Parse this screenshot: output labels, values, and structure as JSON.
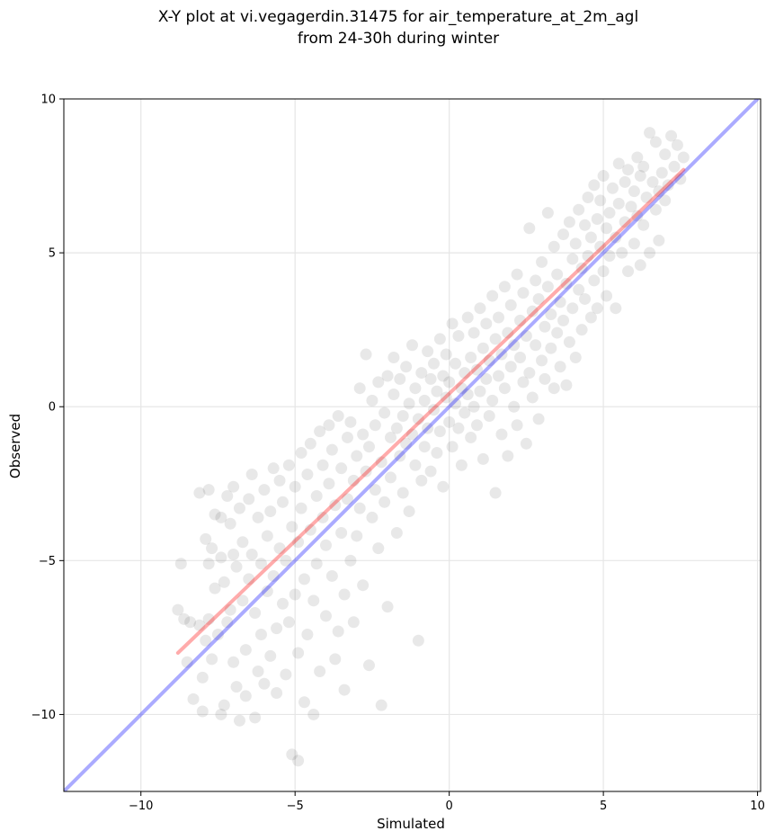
{
  "chart_data": {
    "type": "scatter",
    "title_line1": "X-Y plot at vi.vegagerdin.31475 for air_temperature_at_2m_agl",
    "title_line2": "from 24-30h during winter",
    "xlabel": "Simulated",
    "ylabel": "Observed",
    "xlim": [
      -12.5,
      10.1
    ],
    "ylim": [
      -12.5,
      10.0
    ],
    "x_ticks": [
      -10,
      -5,
      0,
      5,
      10
    ],
    "y_ticks": [
      -10,
      -5,
      0,
      5,
      10
    ],
    "x_tick_labels": [
      "−10",
      "−5",
      "0",
      "5",
      "10"
    ],
    "y_tick_labels": [
      "−10",
      "−5",
      "0",
      "5",
      "10"
    ],
    "grid": true,
    "point_color": "#000000",
    "point_alpha": 0.09,
    "identity_line": {
      "x": [
        -12.5,
        10.1
      ],
      "y": [
        -12.5,
        10.1
      ],
      "color": "#0000ff"
    },
    "fit_line": {
      "x": [
        -8.8,
        7.6
      ],
      "y": [
        -8.0,
        7.7
      ],
      "color": "#ff0000"
    },
    "series": [
      {
        "points": [
          [
            -8.8,
            -6.6
          ],
          [
            -8.7,
            -5.1
          ],
          [
            -8.6,
            -6.9
          ],
          [
            -8.5,
            -8.3
          ],
          [
            -8.4,
            -7.0
          ],
          [
            -8.3,
            -9.5
          ],
          [
            -8.1,
            -2.8
          ],
          [
            -8.1,
            -7.1
          ],
          [
            -8.0,
            -8.8
          ],
          [
            -8.0,
            -9.9
          ],
          [
            -7.9,
            -4.3
          ],
          [
            -7.9,
            -7.6
          ],
          [
            -7.8,
            -2.7
          ],
          [
            -7.8,
            -5.1
          ],
          [
            -7.8,
            -6.9
          ],
          [
            -7.7,
            -4.6
          ],
          [
            -7.7,
            -8.2
          ],
          [
            -7.6,
            -5.9
          ],
          [
            -7.6,
            -3.5
          ],
          [
            -7.5,
            -7.4
          ],
          [
            -7.4,
            -10.0
          ],
          [
            -7.4,
            -4.9
          ],
          [
            -7.4,
            -3.6
          ],
          [
            -7.3,
            -5.7
          ],
          [
            -7.3,
            -9.7
          ],
          [
            -7.2,
            -2.9
          ],
          [
            -7.2,
            -7.0
          ],
          [
            -7.1,
            -6.6
          ],
          [
            -7.1,
            -3.8
          ],
          [
            -7.0,
            -4.8
          ],
          [
            -7.0,
            -8.3
          ],
          [
            -7.0,
            -2.6
          ],
          [
            -6.9,
            -5.2
          ],
          [
            -6.9,
            -9.1
          ],
          [
            -6.8,
            -10.2
          ],
          [
            -6.8,
            -3.3
          ],
          [
            -6.7,
            -4.4
          ],
          [
            -6.7,
            -6.3
          ],
          [
            -6.6,
            -7.9
          ],
          [
            -6.6,
            -9.4
          ],
          [
            -6.5,
            -5.6
          ],
          [
            -6.5,
            -3.0
          ],
          [
            -6.4,
            -2.2
          ],
          [
            -6.4,
            -4.8
          ],
          [
            -6.3,
            -6.7
          ],
          [
            -6.3,
            -10.1
          ],
          [
            -6.2,
            -8.6
          ],
          [
            -6.2,
            -3.6
          ],
          [
            -6.1,
            -5.1
          ],
          [
            -6.1,
            -7.4
          ],
          [
            -6.0,
            -2.7
          ],
          [
            -6.0,
            -9.0
          ],
          [
            -5.9,
            -4.2
          ],
          [
            -5.9,
            -6.0
          ],
          [
            -5.8,
            -8.1
          ],
          [
            -5.8,
            -3.4
          ],
          [
            -5.7,
            -2.0
          ],
          [
            -5.7,
            -5.5
          ],
          [
            -5.6,
            -7.2
          ],
          [
            -5.6,
            -9.3
          ],
          [
            -5.5,
            -4.6
          ],
          [
            -5.5,
            -2.4
          ],
          [
            -5.4,
            -6.4
          ],
          [
            -5.4,
            -3.1
          ],
          [
            -5.3,
            -8.7
          ],
          [
            -5.3,
            -5.0
          ],
          [
            -5.2,
            -1.9
          ],
          [
            -5.2,
            -7.0
          ],
          [
            -5.1,
            -3.9
          ],
          [
            -5.1,
            -11.3
          ],
          [
            -5.0,
            -2.6
          ],
          [
            -5.0,
            -6.1
          ],
          [
            -4.9,
            -4.4
          ],
          [
            -4.9,
            -8.0
          ],
          [
            -4.9,
            -11.5
          ],
          [
            -4.8,
            -1.5
          ],
          [
            -4.8,
            -3.3
          ],
          [
            -4.7,
            -5.6
          ],
          [
            -4.7,
            -9.6
          ],
          [
            -4.6,
            -2.2
          ],
          [
            -4.6,
            -7.4
          ],
          [
            -4.5,
            -4.0
          ],
          [
            -4.5,
            -1.2
          ],
          [
            -4.4,
            -6.3
          ],
          [
            -4.4,
            -10.0
          ],
          [
            -4.3,
            -2.9
          ],
          [
            -4.3,
            -5.1
          ],
          [
            -4.2,
            -0.8
          ],
          [
            -4.2,
            -8.6
          ],
          [
            -4.1,
            -3.6
          ],
          [
            -4.1,
            -1.9
          ],
          [
            -4.0,
            -6.8
          ],
          [
            -4.0,
            -4.5
          ],
          [
            -3.9,
            -2.5
          ],
          [
            -3.9,
            -0.6
          ],
          [
            -3.8,
            -5.5
          ],
          [
            -3.8,
            -1.4
          ],
          [
            -3.7,
            -3.2
          ],
          [
            -3.7,
            -8.2
          ],
          [
            -3.6,
            -7.3
          ],
          [
            -3.6,
            -0.3
          ],
          [
            -3.5,
            -4.1
          ],
          [
            -3.5,
            -2.0
          ],
          [
            -3.4,
            -6.1
          ],
          [
            -3.4,
            -9.2
          ],
          [
            -3.3,
            -1.0
          ],
          [
            -3.3,
            -3.0
          ],
          [
            -3.2,
            -5.0
          ],
          [
            -3.2,
            -0.5
          ],
          [
            -3.1,
            -2.4
          ],
          [
            -3.1,
            -7.0
          ],
          [
            -3.0,
            -1.6
          ],
          [
            -3.0,
            -4.2
          ],
          [
            -2.9,
            0.6
          ],
          [
            -2.9,
            -3.3
          ],
          [
            -2.8,
            -0.9
          ],
          [
            -2.8,
            -5.8
          ],
          [
            -2.7,
            -2.1
          ],
          [
            -2.7,
            1.7
          ],
          [
            -2.6,
            -1.3
          ],
          [
            -2.6,
            -8.4
          ],
          [
            -2.5,
            -3.6
          ],
          [
            -2.5,
            0.2
          ],
          [
            -2.4,
            -0.6
          ],
          [
            -2.4,
            -2.7
          ],
          [
            -2.3,
            -4.6
          ],
          [
            -2.3,
            0.8
          ],
          [
            -2.2,
            -1.8
          ],
          [
            -2.2,
            -9.7
          ],
          [
            -2.1,
            -0.2
          ],
          [
            -2.1,
            -3.1
          ],
          [
            -2.0,
            1.0
          ],
          [
            -2.0,
            -6.5
          ],
          [
            -1.9,
            -1.0
          ],
          [
            -1.9,
            -2.3
          ],
          [
            -1.8,
            0.4
          ],
          [
            -1.8,
            1.6
          ],
          [
            -1.7,
            -0.7
          ],
          [
            -1.7,
            -4.1
          ],
          [
            -1.6,
            -1.6
          ],
          [
            -1.6,
            0.9
          ],
          [
            -1.5,
            -2.8
          ],
          [
            -1.5,
            -0.3
          ],
          [
            -1.4,
            1.3
          ],
          [
            -1.4,
            -1.2
          ],
          [
            -1.3,
            -3.4
          ],
          [
            -1.3,
            0.1
          ],
          [
            -1.2,
            -0.9
          ],
          [
            -1.2,
            2.0
          ],
          [
            -1.1,
            -1.9
          ],
          [
            -1.1,
            0.6
          ],
          [
            -1.0,
            -0.4
          ],
          [
            -1.0,
            -7.6
          ],
          [
            -0.9,
            1.1
          ],
          [
            -0.9,
            -2.4
          ],
          [
            -0.8,
            0.2
          ],
          [
            -0.8,
            -1.3
          ],
          [
            -0.7,
            1.8
          ],
          [
            -0.7,
            -0.7
          ],
          [
            -0.6,
            0.9
          ],
          [
            -0.6,
            -2.1
          ],
          [
            -0.5,
            -0.1
          ],
          [
            -0.5,
            1.4
          ],
          [
            -0.4,
            -1.5
          ],
          [
            -0.4,
            0.5
          ],
          [
            -0.3,
            2.2
          ],
          [
            -0.3,
            -0.8
          ],
          [
            -0.2,
            1.0
          ],
          [
            -0.2,
            -2.6
          ],
          [
            -0.1,
            0.3
          ],
          [
            -0.1,
            1.7
          ],
          [
            0.0,
            -0.5
          ],
          [
            0.0,
            0.8
          ],
          [
            0.1,
            2.7
          ],
          [
            0.1,
            -1.3
          ],
          [
            0.2,
            0.1
          ],
          [
            0.2,
            1.4
          ],
          [
            0.3,
            -0.7
          ],
          [
            0.3,
            2.3
          ],
          [
            0.4,
            0.6
          ],
          [
            0.4,
            -1.9
          ],
          [
            0.5,
            1.1
          ],
          [
            0.5,
            -0.2
          ],
          [
            0.6,
            2.9
          ],
          [
            0.6,
            0.4
          ],
          [
            0.7,
            -1.0
          ],
          [
            0.7,
            1.6
          ],
          [
            0.8,
            0.0
          ],
          [
            0.8,
            2.4
          ],
          [
            0.9,
            -0.6
          ],
          [
            0.9,
            1.2
          ],
          [
            1.0,
            3.2
          ],
          [
            1.0,
            0.5
          ],
          [
            1.1,
            -1.7
          ],
          [
            1.1,
            1.9
          ],
          [
            1.2,
            0.9
          ],
          [
            1.2,
            2.7
          ],
          [
            1.3,
            -0.3
          ],
          [
            1.3,
            1.5
          ],
          [
            1.4,
            3.6
          ],
          [
            1.4,
            0.2
          ],
          [
            1.5,
            2.2
          ],
          [
            1.5,
            -2.8
          ],
          [
            1.6,
            1.0
          ],
          [
            1.6,
            2.9
          ],
          [
            1.7,
            -0.9
          ],
          [
            1.7,
            1.7
          ],
          [
            1.8,
            3.9
          ],
          [
            1.8,
            0.6
          ],
          [
            1.9,
            2.4
          ],
          [
            1.9,
            -1.6
          ],
          [
            2.0,
            1.3
          ],
          [
            2.0,
            3.3
          ],
          [
            2.1,
            0.0
          ],
          [
            2.1,
            2.0
          ],
          [
            2.2,
            4.3
          ],
          [
            2.2,
            -0.6
          ],
          [
            2.3,
            1.6
          ],
          [
            2.3,
            2.8
          ],
          [
            2.4,
            0.8
          ],
          [
            2.4,
            3.7
          ],
          [
            2.5,
            -1.2
          ],
          [
            2.5,
            2.3
          ],
          [
            2.6,
            5.8
          ],
          [
            2.6,
            1.1
          ],
          [
            2.7,
            3.1
          ],
          [
            2.7,
            0.3
          ],
          [
            2.8,
            4.1
          ],
          [
            2.8,
            2.0
          ],
          [
            2.9,
            -0.4
          ],
          [
            2.9,
            3.5
          ],
          [
            3.0,
            1.5
          ],
          [
            3.0,
            4.7
          ],
          [
            3.1,
            2.6
          ],
          [
            3.1,
            0.9
          ],
          [
            3.2,
            3.9
          ],
          [
            3.2,
            6.3
          ],
          [
            3.3,
            1.9
          ],
          [
            3.3,
            3.0
          ],
          [
            3.4,
            5.2
          ],
          [
            3.4,
            0.6
          ],
          [
            3.5,
            2.4
          ],
          [
            3.5,
            4.3
          ],
          [
            3.6,
            1.3
          ],
          [
            3.6,
            3.4
          ],
          [
            3.7,
            5.6
          ],
          [
            3.7,
            2.8
          ],
          [
            3.8,
            0.7
          ],
          [
            3.8,
            4.0
          ],
          [
            3.9,
            6.0
          ],
          [
            3.9,
            2.1
          ],
          [
            4.0,
            4.8
          ],
          [
            4.0,
            3.2
          ],
          [
            4.1,
            1.6
          ],
          [
            4.1,
            5.3
          ],
          [
            4.2,
            3.8
          ],
          [
            4.2,
            6.4
          ],
          [
            4.3,
            2.5
          ],
          [
            4.3,
            4.5
          ],
          [
            4.4,
            5.9
          ],
          [
            4.4,
            3.5
          ],
          [
            4.5,
            6.8
          ],
          [
            4.5,
            4.9
          ],
          [
            4.6,
            2.9
          ],
          [
            4.6,
            5.5
          ],
          [
            4.7,
            4.1
          ],
          [
            4.7,
            7.2
          ],
          [
            4.8,
            6.1
          ],
          [
            4.8,
            3.2
          ],
          [
            4.9,
            5.2
          ],
          [
            4.9,
            6.7
          ],
          [
            5.0,
            4.4
          ],
          [
            5.0,
            7.5
          ],
          [
            5.1,
            5.8
          ],
          [
            5.1,
            3.6
          ],
          [
            5.2,
            6.3
          ],
          [
            5.2,
            4.9
          ],
          [
            5.3,
            7.1
          ],
          [
            5.4,
            5.5
          ],
          [
            5.4,
            3.2
          ],
          [
            5.5,
            6.6
          ],
          [
            5.5,
            7.9
          ],
          [
            5.6,
            5.0
          ],
          [
            5.7,
            7.3
          ],
          [
            5.7,
            6.0
          ],
          [
            5.8,
            4.4
          ],
          [
            5.8,
            7.7
          ],
          [
            5.9,
            6.5
          ],
          [
            6.0,
            5.3
          ],
          [
            6.0,
            7.0
          ],
          [
            6.1,
            8.1
          ],
          [
            6.1,
            6.2
          ],
          [
            6.2,
            4.6
          ],
          [
            6.2,
            7.5
          ],
          [
            6.3,
            5.9
          ],
          [
            6.3,
            7.8
          ],
          [
            6.4,
            6.8
          ],
          [
            6.5,
            5.0
          ],
          [
            6.5,
            8.9
          ],
          [
            6.6,
            7.3
          ],
          [
            6.7,
            6.4
          ],
          [
            6.7,
            8.6
          ],
          [
            6.8,
            7.0
          ],
          [
            6.8,
            5.4
          ],
          [
            6.9,
            7.6
          ],
          [
            7.0,
            6.7
          ],
          [
            7.0,
            8.2
          ],
          [
            7.1,
            7.2
          ],
          [
            7.2,
            8.8
          ],
          [
            7.3,
            7.8
          ],
          [
            7.4,
            8.5
          ],
          [
            7.5,
            7.4
          ],
          [
            7.6,
            8.1
          ]
        ]
      }
    ]
  }
}
